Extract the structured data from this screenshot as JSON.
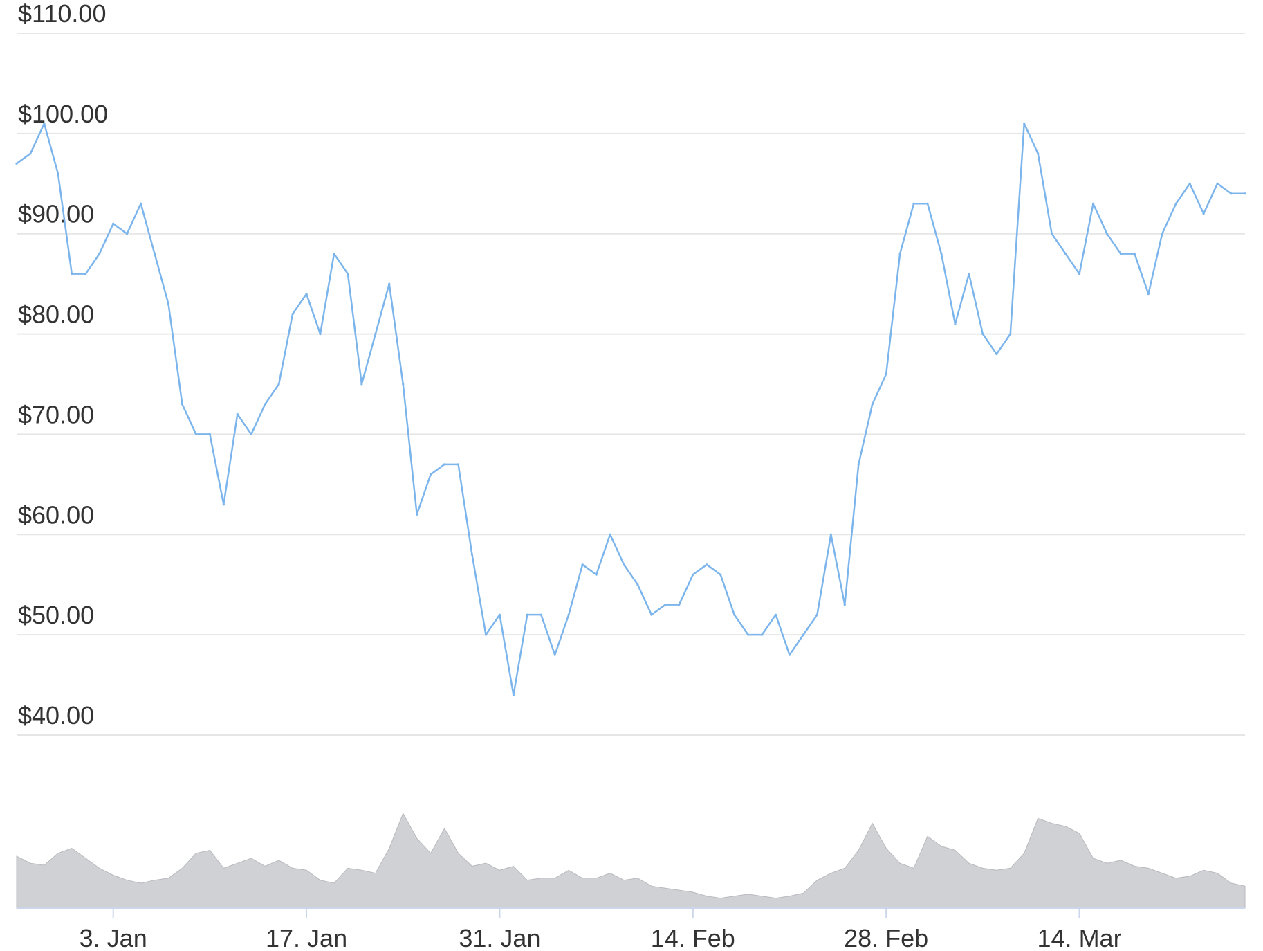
{
  "chart_data": [
    {
      "type": "line",
      "title": "",
      "xlabel": "",
      "ylabel": "",
      "series": [
        {
          "color": "#7cb5ec",
          "x": [
            "2020-12-27",
            "2020-12-28",
            "2020-12-29",
            "2020-12-30",
            "2020-12-31",
            "2021-01-01",
            "2021-01-02",
            "2021-01-03",
            "2021-01-04",
            "2021-01-05",
            "2021-01-06",
            "2021-01-07",
            "2021-01-08",
            "2021-01-09",
            "2021-01-10",
            "2021-01-11",
            "2021-01-12",
            "2021-01-13",
            "2021-01-14",
            "2021-01-15",
            "2021-01-16",
            "2021-01-17",
            "2021-01-18",
            "2021-01-19",
            "2021-01-20",
            "2021-01-21",
            "2021-01-22",
            "2021-01-23",
            "2021-01-24",
            "2021-01-25",
            "2021-01-26",
            "2021-01-27",
            "2021-01-28",
            "2021-01-29",
            "2021-01-30",
            "2021-01-31",
            "2021-02-01",
            "2021-02-02",
            "2021-02-03",
            "2021-02-04",
            "2021-02-05",
            "2021-02-06",
            "2021-02-07",
            "2021-02-08",
            "2021-02-09",
            "2021-02-10",
            "2021-02-11",
            "2021-02-12",
            "2021-02-13",
            "2021-02-14",
            "2021-02-15",
            "2021-02-16",
            "2021-02-17",
            "2021-02-18",
            "2021-02-19",
            "2021-02-20",
            "2021-02-21",
            "2021-02-22",
            "2021-02-23",
            "2021-02-24",
            "2021-02-25",
            "2021-02-26",
            "2021-02-27",
            "2021-02-28",
            "2021-03-01",
            "2021-03-02",
            "2021-03-03",
            "2021-03-04",
            "2021-03-05",
            "2021-03-06",
            "2021-03-07",
            "2021-03-08",
            "2021-03-09",
            "2021-03-10",
            "2021-03-11",
            "2021-03-12",
            "2021-03-13",
            "2021-03-14",
            "2021-03-15",
            "2021-03-16",
            "2021-03-17",
            "2021-03-18",
            "2021-03-19",
            "2021-03-20",
            "2021-03-21",
            "2021-03-22",
            "2021-03-23",
            "2021-03-24",
            "2021-03-25",
            "2021-03-26"
          ],
          "values": [
            97,
            98,
            101,
            96,
            86,
            86,
            88,
            91,
            90,
            93,
            88,
            83,
            73,
            70,
            70,
            63,
            72,
            70,
            73,
            75,
            82,
            84,
            80,
            88,
            86,
            75,
            80,
            85,
            75,
            62,
            66,
            67,
            67,
            58,
            50,
            52,
            44,
            52,
            52,
            48,
            52,
            57,
            56,
            60,
            57,
            55,
            52,
            53,
            53,
            56,
            57,
            56,
            52,
            50,
            50,
            52,
            48,
            50,
            52,
            60,
            53,
            67,
            73,
            76,
            88,
            93,
            93,
            88,
            81,
            86,
            80,
            78,
            80,
            101,
            98,
            90,
            88,
            86,
            93,
            90,
            88,
            88,
            84,
            90,
            93,
            95,
            92,
            95,
            94,
            94
          ]
        }
      ],
      "ylim": [
        40,
        110
      ],
      "y_ticks": [
        "$40.00",
        "$50.00",
        "$60.00",
        "$70.00",
        "$80.00",
        "$90.00",
        "$100.00",
        "$110.00"
      ],
      "y_tick_values": [
        40,
        50,
        60,
        70,
        80,
        90,
        100,
        110
      ],
      "x_ticks": [
        {
          "label": "3. Jan",
          "date": "2021-01-03"
        },
        {
          "label": "17. Jan",
          "date": "2021-01-17"
        },
        {
          "label": "31. Jan",
          "date": "2021-01-31"
        },
        {
          "label": "14. Feb",
          "date": "2021-02-14"
        },
        {
          "label": "28. Feb",
          "date": "2021-02-28"
        },
        {
          "label": "14. Mar",
          "date": "2021-03-14"
        }
      ],
      "grid": true,
      "legend": "none"
    },
    {
      "type": "area",
      "title": "",
      "xlabel": "",
      "ylabel": "",
      "series": [
        {
          "color": "#c8c9ce",
          "x": [
            "2020-12-27",
            "2020-12-28",
            "2020-12-29",
            "2020-12-30",
            "2020-12-31",
            "2021-01-01",
            "2021-01-02",
            "2021-01-03",
            "2021-01-04",
            "2021-01-05",
            "2021-01-06",
            "2021-01-07",
            "2021-01-08",
            "2021-01-09",
            "2021-01-10",
            "2021-01-11",
            "2021-01-12",
            "2021-01-13",
            "2021-01-14",
            "2021-01-15",
            "2021-01-16",
            "2021-01-17",
            "2021-01-18",
            "2021-01-19",
            "2021-01-20",
            "2021-01-21",
            "2021-01-22",
            "2021-01-23",
            "2021-01-24",
            "2021-01-25",
            "2021-01-26",
            "2021-01-27",
            "2021-01-28",
            "2021-01-29",
            "2021-01-30",
            "2021-01-31",
            "2021-02-01",
            "2021-02-02",
            "2021-02-03",
            "2021-02-04",
            "2021-02-05",
            "2021-02-06",
            "2021-02-07",
            "2021-02-08",
            "2021-02-09",
            "2021-02-10",
            "2021-02-11",
            "2021-02-12",
            "2021-02-13",
            "2021-02-14",
            "2021-02-15",
            "2021-02-16",
            "2021-02-17",
            "2021-02-18",
            "2021-02-19",
            "2021-02-20",
            "2021-02-21",
            "2021-02-22",
            "2021-02-23",
            "2021-02-24",
            "2021-02-25",
            "2021-02-26",
            "2021-02-27",
            "2021-02-28",
            "2021-03-01",
            "2021-03-02",
            "2021-03-03",
            "2021-03-04",
            "2021-03-05",
            "2021-03-06",
            "2021-03-07",
            "2021-03-08",
            "2021-03-09",
            "2021-03-10",
            "2021-03-11",
            "2021-03-12",
            "2021-03-13",
            "2021-03-14",
            "2021-03-15",
            "2021-03-16",
            "2021-03-17",
            "2021-03-18",
            "2021-03-19",
            "2021-03-20",
            "2021-03-21",
            "2021-03-22",
            "2021-03-23",
            "2021-03-24",
            "2021-03-25",
            "2021-03-26"
          ],
          "values": [
            52,
            45,
            43,
            55,
            60,
            50,
            40,
            33,
            28,
            25,
            28,
            30,
            40,
            55,
            58,
            40,
            45,
            50,
            42,
            48,
            40,
            38,
            28,
            25,
            40,
            38,
            35,
            60,
            95,
            70,
            55,
            80,
            55,
            42,
            45,
            38,
            42,
            28,
            30,
            30,
            38,
            30,
            30,
            35,
            28,
            30,
            22,
            20,
            18,
            16,
            12,
            10,
            12,
            14,
            12,
            10,
            12,
            15,
            28,
            35,
            40,
            58,
            85,
            60,
            45,
            40,
            72,
            62,
            58,
            45,
            40,
            38,
            40,
            55,
            90,
            85,
            82,
            75,
            50,
            45,
            48,
            42,
            40,
            35,
            30,
            32,
            38,
            35,
            25,
            22
          ],
          "y_range": [
            0,
            100
          ]
        }
      ],
      "grid": false,
      "legend": "none"
    }
  ]
}
